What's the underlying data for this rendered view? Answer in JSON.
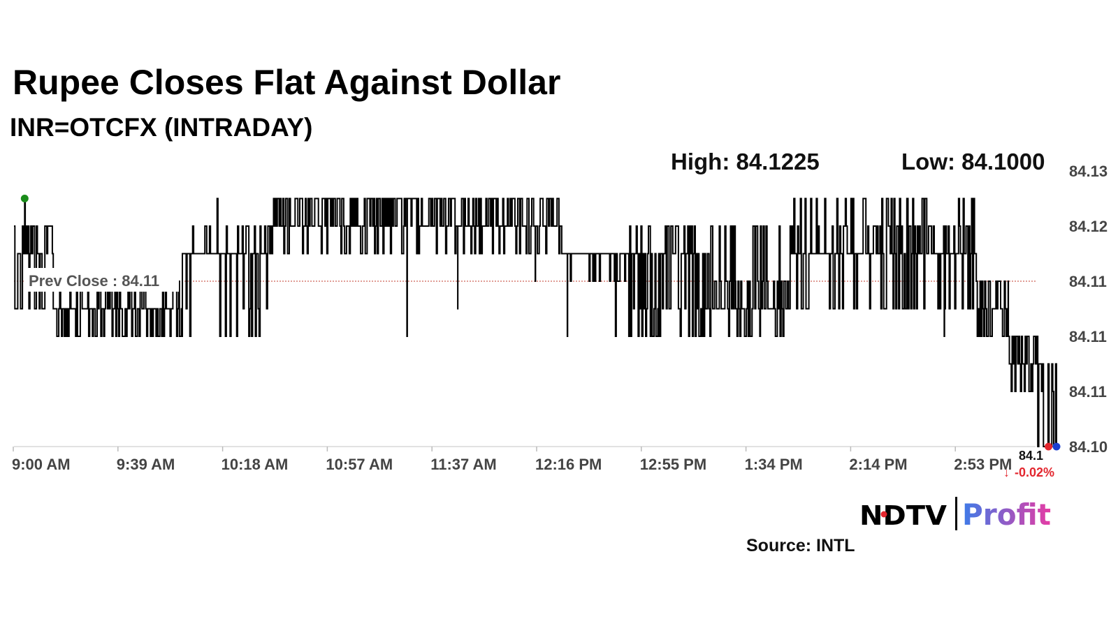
{
  "header": {
    "title": "Rupee Closes Flat Against Dollar",
    "subtitle": "INR=OTCFX (INTRADAY)",
    "high_label": "High: 84.1225",
    "low_label": "Low: 84.1000"
  },
  "chart_data": {
    "type": "line",
    "title": "Rupee Closes Flat Against Dollar",
    "subtitle": "INR=OTCFX (INTRADAY)",
    "x_tick_labels": [
      "9:00 AM",
      "9:39 AM",
      "10:18 AM",
      "10:57 AM",
      "11:37 AM",
      "12:16 PM",
      "12:55 PM",
      "1:34 PM",
      "2:14 PM",
      "2:53 PM"
    ],
    "y_tick_labels": [
      "84.13",
      "84.12",
      "84.11",
      "84.11",
      "84.11",
      "84.10"
    ],
    "y_tick_values": [
      84.125,
      84.12,
      84.115,
      84.11,
      84.105,
      84.1
    ],
    "ylim": [
      84.1,
      84.125
    ],
    "x_range_minutes": [
      0,
      390
    ],
    "high": 84.1225,
    "low": 84.1,
    "prev_close": {
      "label": "Prev Close : 84.11",
      "value": 84.115
    },
    "last": {
      "label": "84.1",
      "change": "-0.02%",
      "value": 84.1
    },
    "series": [
      {
        "name": "INR=OTCFX",
        "color": "#000000",
        "segments": [
          {
            "t": [
              0,
              15
            ],
            "mid": 84.1175,
            "alt": [
              84.12,
              84.1125
            ],
            "density": 0.7
          },
          {
            "t": [
              15,
              63
            ],
            "mid": 84.1125,
            "alt": [
              84.115,
              84.11
            ],
            "density": 0.55
          },
          {
            "t": [
              63,
              95
            ],
            "mid": 84.1175,
            "alt": [
              84.12,
              84.1125,
              84.11
            ],
            "density": 0.3
          },
          {
            "t": [
              95,
              205
            ],
            "mid": 84.1175,
            "alt": [
              84.12,
              84.1225
            ],
            "density": 0.85
          },
          {
            "t": [
              205,
              230
            ],
            "mid": 84.1175,
            "alt": [
              84.115
            ],
            "density": 0.15
          },
          {
            "t": [
              230,
              260
            ],
            "mid": 84.1175,
            "alt": [
              84.12,
              84.11,
              84.1125
            ],
            "density": 0.6
          },
          {
            "t": [
              260,
              290
            ],
            "mid": 84.1125,
            "alt": [
              84.115,
              84.11,
              84.12
            ],
            "density": 0.55
          },
          {
            "t": [
              290,
              360
            ],
            "mid": 84.1175,
            "alt": [
              84.12,
              84.1225,
              84.1125
            ],
            "density": 0.5
          },
          {
            "t": [
              360,
              372
            ],
            "mid": 84.1125,
            "alt": [
              84.11,
              84.115
            ],
            "density": 0.6
          },
          {
            "t": [
              372,
              383
            ],
            "mid": 84.1075,
            "alt": [
              84.11,
              84.105
            ],
            "density": 0.7
          },
          {
            "t": [
              383,
              390
            ],
            "mid": 84.105,
            "alt": [
              84.1,
              84.1075
            ],
            "density": 0.8
          }
        ],
        "spikes": [
          {
            "t": 4,
            "value": 84.1225
          },
          {
            "t": 76,
            "value": 84.1225
          },
          {
            "t": 103,
            "value": 84.1225
          },
          {
            "t": 109,
            "value": 84.1225
          },
          {
            "t": 127,
            "value": 84.1225
          },
          {
            "t": 146,
            "value": 84.1225
          },
          {
            "t": 147,
            "value": 84.11
          },
          {
            "t": 159,
            "value": 84.1225
          },
          {
            "t": 166,
            "value": 84.1125
          },
          {
            "t": 187,
            "value": 84.1225
          },
          {
            "t": 195,
            "value": 84.115
          },
          {
            "t": 207,
            "value": 84.11
          },
          {
            "t": 225,
            "value": 84.11
          },
          {
            "t": 241,
            "value": 84.11
          },
          {
            "t": 270,
            "value": 84.1125
          },
          {
            "t": 279,
            "value": 84.11
          },
          {
            "t": 334,
            "value": 84.1225
          },
          {
            "t": 348,
            "value": 84.11
          }
        ],
        "last_value": 84.1
      }
    ],
    "markers": [
      {
        "name": "high-marker",
        "t": 4,
        "value": 84.1225,
        "color": "#1a8c1a"
      },
      {
        "name": "low-marker",
        "t": 387,
        "value": 84.1,
        "color": "#e3262e"
      },
      {
        "name": "last-marker",
        "t": 390,
        "value": 84.1,
        "color": "#1c3fd0"
      }
    ],
    "prev_close_color": "#c0392b",
    "grid": false
  },
  "branding": {
    "logo_ndtv": "NDTV",
    "logo_profit": "Profit",
    "profit_gradient": [
      "#3d7be8",
      "#e63ca4"
    ],
    "source": "Source: INTL"
  }
}
